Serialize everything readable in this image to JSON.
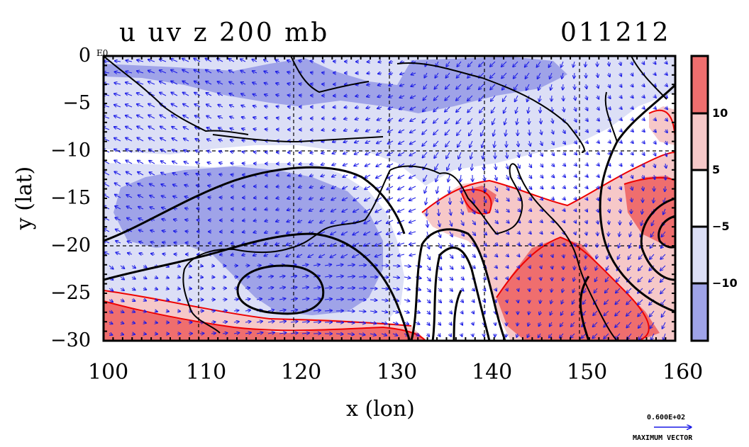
{
  "title_left": "u uv z 200 mb",
  "title_right": "011212",
  "x_axis_title": "x (lon)",
  "y_axis_title": "y (lat)",
  "x_ticks": [
    "100",
    "110",
    "120",
    "130",
    "140",
    "150",
    "160"
  ],
  "y_ticks": [
    "0",
    "−5",
    "−10",
    "−15",
    "−20",
    "−25",
    "−30"
  ],
  "colorbar_labels": [
    "10",
    "5",
    "−5",
    "−10"
  ],
  "vector_scale_value": "0.600E+02",
  "vector_scale_caption": "MAXIMUM VECTOR",
  "corner_label": "E0",
  "colors": {
    "shade_neg_strong": "#9fa3e8",
    "shade_neg_light": "#dcdff6",
    "shade_pos_light": "#f6c8c8",
    "shade_pos_strong": "#ef6e6e",
    "vector_color": "#1a1ae6",
    "positive_contour": "#ee0000",
    "coast": "#000000"
  },
  "chart_data": {
    "type": "heatmap",
    "variable": "u uv z 200 mb",
    "date": "011212",
    "xlabel": "x (lon)",
    "ylabel": "y (lat)",
    "xlim": [
      100,
      160
    ],
    "ylim": [
      -30,
      0
    ],
    "colorbar_levels": [
      -10,
      -5,
      5,
      10
    ],
    "grid": true,
    "overlays": [
      "wind vectors",
      "height contours",
      "coastlines"
    ]
  }
}
